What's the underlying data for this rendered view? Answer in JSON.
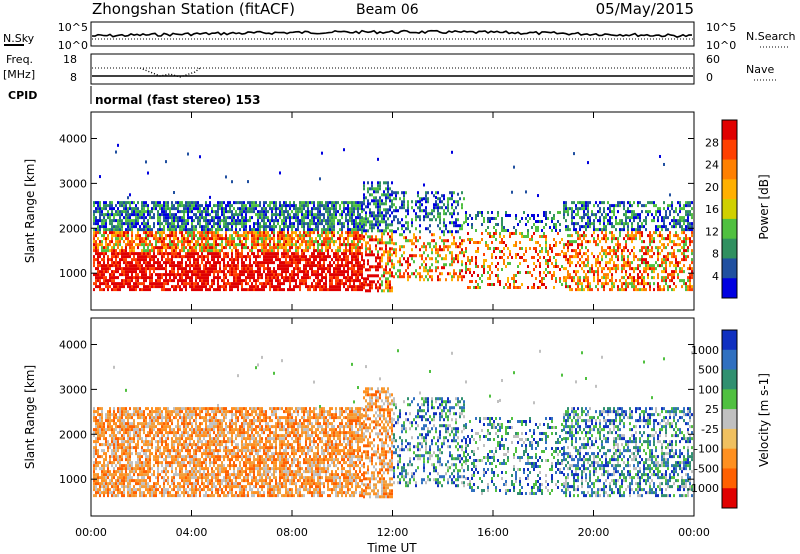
{
  "header": {
    "station_title": "Zhongshan Station (fitACF)",
    "beam": "Beam 06",
    "date": "05/May/2015"
  },
  "panels": {
    "nsky": {
      "label": "N.Sky",
      "right_label": "N.Search",
      "top_tick": "10^5",
      "bottom_tick": "10^0",
      "right_top_tick": "10^5",
      "right_bottom_tick": "10^0"
    },
    "freq": {
      "label_line1": "Freq.",
      "label_line2": "[MHz]",
      "right_label": "Nave",
      "top_tick": "18",
      "bottom_tick": "8",
      "right_top_tick": "60",
      "right_bottom_tick": "0"
    },
    "cpid": {
      "label": "CPID",
      "text": "normal (fast stereo) 153"
    }
  },
  "chart_data": [
    {
      "type": "heatmap",
      "name": "power",
      "ylabel": "Slant Range [km]",
      "ylim": [
        180,
        4590
      ],
      "y_ticks": [
        "1000",
        "2000",
        "3000",
        "4000"
      ],
      "x_ticks": [
        "00:00",
        "04:00",
        "08:00",
        "12:00",
        "16:00",
        "20:00",
        "00:00"
      ],
      "colorbar": {
        "label": "Power [dB]",
        "ticks": [
          "28",
          "24",
          "20",
          "16",
          "12",
          "8",
          "4"
        ],
        "colors": [
          "#e00000",
          "#ff4000",
          "#ff8000",
          "#ffb000",
          "#d0d000",
          "#50c040",
          "#309060",
          "#2050a0",
          "#0000e0"
        ]
      }
    },
    {
      "type": "heatmap",
      "name": "velocity",
      "ylabel": "Slant Range [km]",
      "xlabel": "Time UT",
      "ylim": [
        180,
        4590
      ],
      "y_ticks": [
        "1000",
        "2000",
        "3000",
        "4000"
      ],
      "x_ticks": [
        "00:00",
        "04:00",
        "08:00",
        "12:00",
        "16:00",
        "20:00",
        "00:00"
      ],
      "colorbar": {
        "label": "Velocity [m s-1]",
        "ticks": [
          "1000",
          "500",
          "100",
          "25",
          "-25",
          "-100",
          "-500",
          "-1000"
        ],
        "colors": [
          "#1030c0",
          "#3070c0",
          "#309070",
          "#50c040",
          "#c0c0c0",
          "#f0c060",
          "#ff9020",
          "#ff6000",
          "#e00000"
        ]
      }
    }
  ]
}
